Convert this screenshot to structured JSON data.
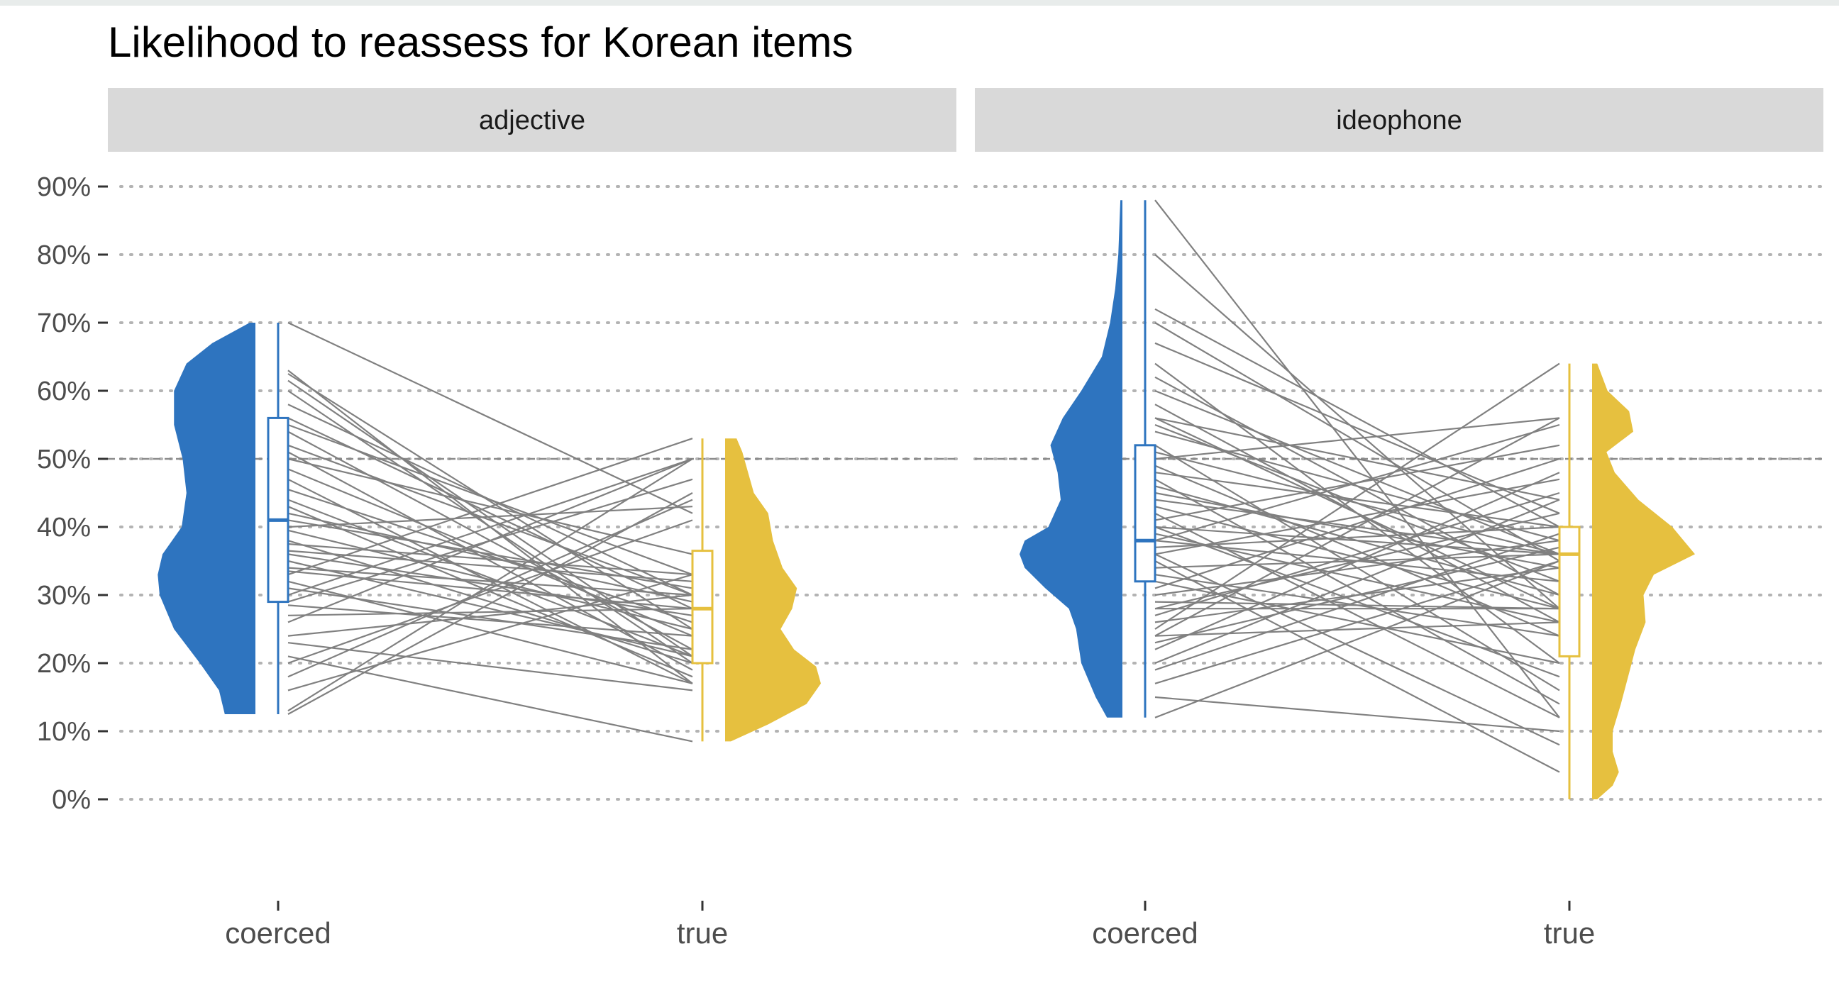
{
  "chart_data": {
    "type": "raincloud",
    "title": "Likelihood to reassess for Korean items",
    "xlabel": "",
    "ylabel": "",
    "y_tick_labels": [
      "0%",
      "10%",
      "20%",
      "30%",
      "40%",
      "50%",
      "60%",
      "70%",
      "80%",
      "90%"
    ],
    "ylim": [
      0,
      90
    ],
    "reference_line": 50,
    "grid": "horizontal-dotted",
    "colors": {
      "coerced": "#2e74bf",
      "true": "#e6c03f",
      "pair_lines": "#808080"
    },
    "categories": [
      "coerced",
      "true"
    ],
    "panels": [
      {
        "label": "adjective",
        "groups": {
          "coerced": {
            "box": {
              "min": 12.5,
              "q1": 29,
              "median": 41,
              "q3": 56,
              "max": 70
            },
            "density": [
              [
                12.5,
                0.32
              ],
              [
                16,
                0.38
              ],
              [
                20,
                0.58
              ],
              [
                25,
                0.85
              ],
              [
                30,
                1.0
              ],
              [
                33,
                1.02
              ],
              [
                36,
                0.97
              ],
              [
                40,
                0.77
              ],
              [
                45,
                0.72
              ],
              [
                50,
                0.76
              ],
              [
                55,
                0.85
              ],
              [
                60,
                0.85
              ],
              [
                64,
                0.72
              ],
              [
                67,
                0.45
              ],
              [
                70,
                0.06
              ]
            ]
          },
          "true": {
            "box": {
              "min": 8.5,
              "q1": 20,
              "median": 28,
              "q3": 36.5,
              "max": 53
            },
            "density": [
              [
                8.5,
                0.06
              ],
              [
                11,
                0.45
              ],
              [
                14,
                0.85
              ],
              [
                17,
                1.0
              ],
              [
                19.5,
                0.95
              ],
              [
                22,
                0.72
              ],
              [
                25,
                0.58
              ],
              [
                28,
                0.7
              ],
              [
                31,
                0.75
              ],
              [
                34,
                0.6
              ],
              [
                38,
                0.5
              ],
              [
                42,
                0.45
              ],
              [
                45,
                0.3
              ],
              [
                48,
                0.24
              ],
              [
                51,
                0.18
              ],
              [
                53,
                0.12
              ]
            ]
          }
        },
        "pairs": [
          [
            70,
            42
          ],
          [
            63,
            17
          ],
          [
            62.5,
            25
          ],
          [
            61.5,
            21
          ],
          [
            60,
            20
          ],
          [
            58,
            30
          ],
          [
            56,
            28
          ],
          [
            55,
            33
          ],
          [
            54,
            22
          ],
          [
            52,
            30
          ],
          [
            51,
            19
          ],
          [
            50,
            36
          ],
          [
            48.5,
            24
          ],
          [
            47,
            17
          ],
          [
            45.5,
            26
          ],
          [
            44,
            21
          ],
          [
            43,
            18
          ],
          [
            42,
            29
          ],
          [
            41,
            31
          ],
          [
            40,
            43
          ],
          [
            39.5,
            25
          ],
          [
            38,
            20
          ],
          [
            37.5,
            33
          ],
          [
            36.5,
            32
          ],
          [
            36,
            27
          ],
          [
            35,
            21
          ],
          [
            34,
            30
          ],
          [
            33.5,
            28
          ],
          [
            33,
            53
          ],
          [
            32,
            17
          ],
          [
            31,
            22
          ],
          [
            30,
            50
          ],
          [
            29,
            47
          ],
          [
            28.5,
            24
          ],
          [
            27,
            28
          ],
          [
            26,
            50
          ],
          [
            24,
            30
          ],
          [
            23,
            16
          ],
          [
            21,
            8.5
          ],
          [
            20,
            41
          ],
          [
            18,
            44
          ],
          [
            16,
            33
          ],
          [
            13,
            50
          ],
          [
            12.5,
            45
          ]
        ]
      },
      {
        "label": "ideophone",
        "groups": {
          "coerced": {
            "box": {
              "min": 12,
              "q1": 32,
              "median": 38,
              "q3": 52,
              "max": 88
            },
            "density": [
              [
                12,
                0.15
              ],
              [
                15,
                0.26
              ],
              [
                20,
                0.4
              ],
              [
                25,
                0.45
              ],
              [
                28,
                0.52
              ],
              [
                31,
                0.75
              ],
              [
                34,
                0.95
              ],
              [
                36,
                1.0
              ],
              [
                38,
                0.95
              ],
              [
                40,
                0.72
              ],
              [
                44,
                0.6
              ],
              [
                48,
                0.63
              ],
              [
                52,
                0.7
              ],
              [
                56,
                0.58
              ],
              [
                60,
                0.4
              ],
              [
                65,
                0.2
              ],
              [
                70,
                0.12
              ],
              [
                75,
                0.07
              ],
              [
                80,
                0.04
              ],
              [
                88,
                0.02
              ]
            ]
          },
          "true": {
            "box": {
              "min": 0,
              "q1": 21,
              "median": 36,
              "q3": 40,
              "max": 64
            },
            "density": [
              [
                0,
                0.05
              ],
              [
                2,
                0.2
              ],
              [
                4,
                0.26
              ],
              [
                7,
                0.2
              ],
              [
                10,
                0.2
              ],
              [
                14,
                0.28
              ],
              [
                18,
                0.35
              ],
              [
                22,
                0.42
              ],
              [
                26,
                0.52
              ],
              [
                30,
                0.5
              ],
              [
                33,
                0.6
              ],
              [
                36,
                1.0
              ],
              [
                40,
                0.78
              ],
              [
                44,
                0.45
              ],
              [
                48,
                0.22
              ],
              [
                51,
                0.14
              ],
              [
                54,
                0.4
              ],
              [
                57,
                0.36
              ],
              [
                60,
                0.15
              ],
              [
                64,
                0.05
              ]
            ]
          }
        },
        "pairs": [
          [
            88,
            12
          ],
          [
            80,
            28
          ],
          [
            72,
            40
          ],
          [
            70,
            35
          ],
          [
            67,
            42
          ],
          [
            64,
            20
          ],
          [
            62,
            30
          ],
          [
            60,
            36
          ],
          [
            58,
            26
          ],
          [
            56,
            44
          ],
          [
            56,
            28
          ],
          [
            55,
            32
          ],
          [
            54,
            38
          ],
          [
            52,
            16
          ],
          [
            51,
            36
          ],
          [
            50,
            56
          ],
          [
            49,
            24
          ],
          [
            48,
            40
          ],
          [
            47,
            14
          ],
          [
            46,
            30
          ],
          [
            45,
            34
          ],
          [
            44,
            36
          ],
          [
            43,
            28
          ],
          [
            42,
            12
          ],
          [
            41,
            52
          ],
          [
            40,
            36
          ],
          [
            40,
            18
          ],
          [
            39,
            26
          ],
          [
            38,
            55
          ],
          [
            38,
            32
          ],
          [
            37,
            40
          ],
          [
            36,
            47
          ],
          [
            36,
            8
          ],
          [
            35,
            4
          ],
          [
            34,
            36
          ],
          [
            33,
            24
          ],
          [
            32,
            20
          ],
          [
            31,
            50
          ],
          [
            30,
            38
          ],
          [
            29,
            28
          ],
          [
            28,
            42
          ],
          [
            28,
            28
          ],
          [
            27,
            45
          ],
          [
            26,
            34
          ],
          [
            25,
            64
          ],
          [
            24,
            56
          ],
          [
            24,
            26
          ],
          [
            23,
            37
          ],
          [
            22,
            48
          ],
          [
            20,
            44
          ],
          [
            19,
            39
          ],
          [
            17,
            35
          ],
          [
            15,
            10
          ],
          [
            12,
            35
          ]
        ]
      }
    ]
  }
}
